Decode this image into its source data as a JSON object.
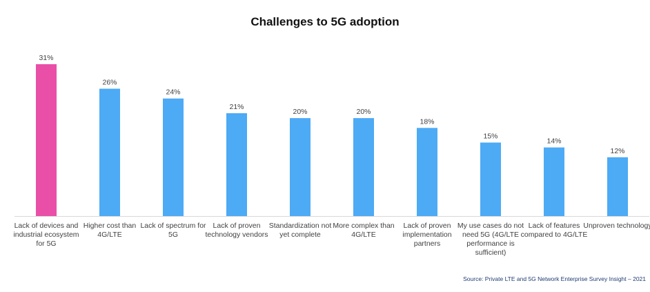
{
  "chart_data": {
    "type": "bar",
    "title": "Challenges to 5G adoption",
    "categories": [
      "Lack of devices and industrial ecosystem for 5G",
      "Higher cost than 4G/LTE",
      "Lack of spectrum for 5G",
      "Lack of proven technology vendors",
      "Standardization not yet complete",
      "More complex than 4G/LTE",
      "Lack of proven implementation partners",
      "My use cases do not need 5G (4G/LTE performance is sufficient)",
      "Lack of features compared to 4G/LTE",
      "Unproven technology"
    ],
    "values": [
      31,
      26,
      24,
      21,
      20,
      20,
      18,
      15,
      14,
      12
    ],
    "data_labels": [
      "31%",
      "26%",
      "24%",
      "21%",
      "20%",
      "20%",
      "18%",
      "15%",
      "14%",
      "12%"
    ],
    "ylim": [
      0,
      31
    ],
    "grid": false,
    "colors": {
      "highlight": "#ea4fa8",
      "bar": "#4daaf5",
      "axis": "#d9d9d9"
    },
    "highlight_index": 0
  },
  "source": "Source: Private LTE and 5G Network Enterprise Survey Insight – 2021"
}
